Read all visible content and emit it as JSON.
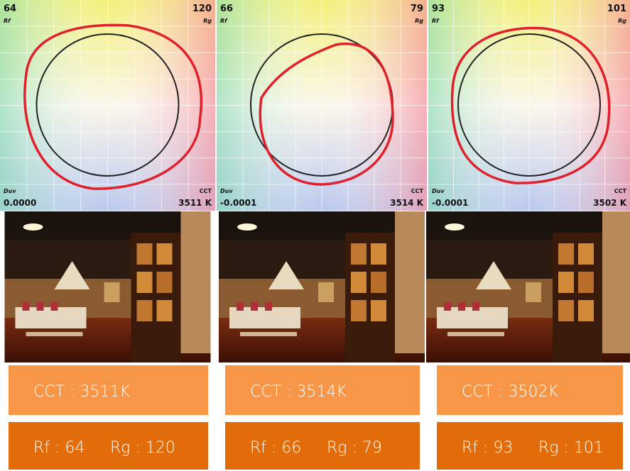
{
  "panels": [
    {
      "rf": "64",
      "rg": "120",
      "rf_label": "Rf",
      "rg_label": "Rg",
      "duv_label": "Duv",
      "duv": "0.0000",
      "cct_label": "CCT",
      "cct": "3511 K"
    },
    {
      "rf": "66",
      "rg": "79",
      "rf_label": "Rf",
      "rg_label": "Rg",
      "duv_label": "Duv",
      "duv": "-0.0001",
      "cct_label": "CCT",
      "cct": "3514 K"
    },
    {
      "rf": "93",
      "rg": "101",
      "rf_label": "Rf",
      "rg_label": "Rg",
      "duv_label": "Duv",
      "duv": "-0.0001",
      "cct_label": "CCT",
      "cct": "3502 K"
    }
  ],
  "table": {
    "cct_row": [
      "CCT : 3511K",
      "CCT : 3514K",
      "CCT : 3502K"
    ],
    "rating_row": [
      [
        "Rf : 64",
        "Rg : 120"
      ],
      [
        "Rf : 66",
        "Rg : 79"
      ],
      [
        "Rf : 93",
        "Rg : 101"
      ]
    ]
  }
}
